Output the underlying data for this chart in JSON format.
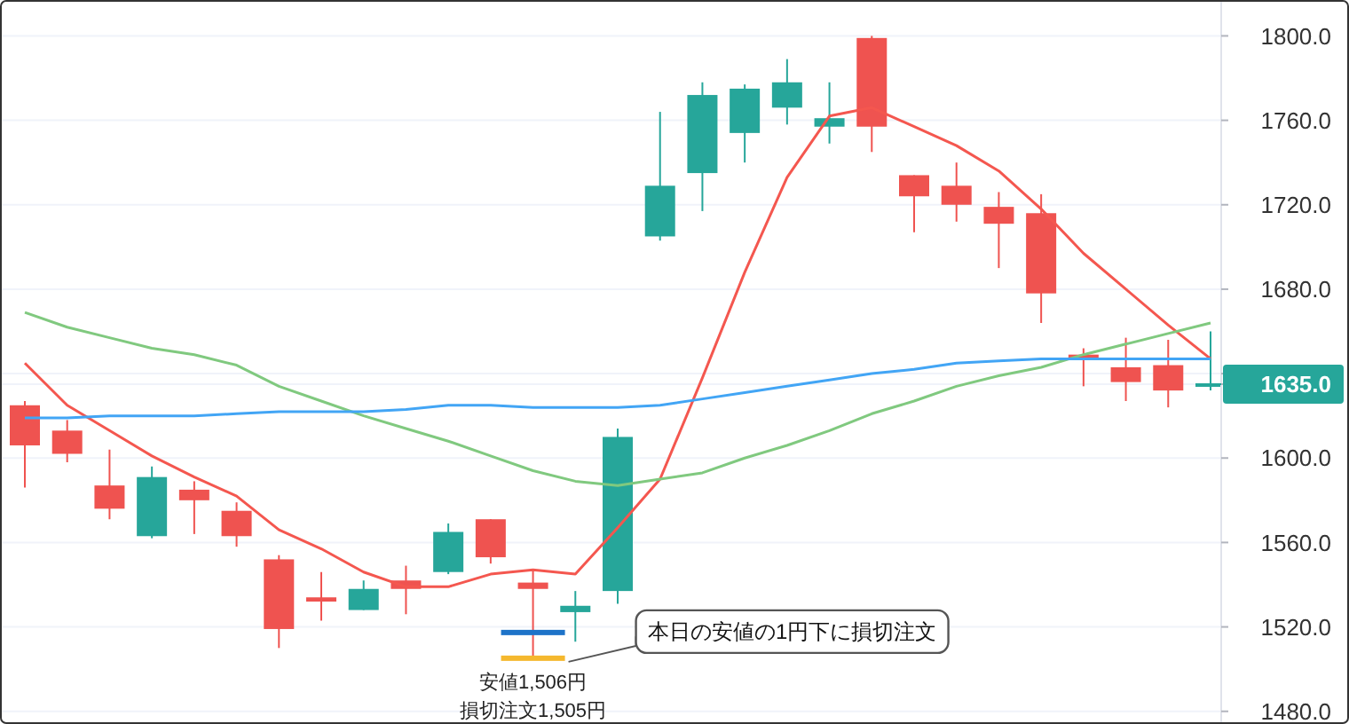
{
  "chart_data": {
    "type": "candlestick",
    "categories": [
      null,
      null,
      null,
      null,
      null,
      null,
      null,
      null,
      null,
      null,
      null,
      null,
      null,
      null,
      null,
      null,
      null,
      null,
      null,
      null,
      null,
      null,
      null,
      null,
      null,
      null,
      null,
      null,
      null
    ],
    "ohlc": [
      [
        1625,
        1627,
        1586,
        1606
      ],
      [
        1613,
        1618,
        1598,
        1602
      ],
      [
        1587,
        1604,
        1571,
        1576
      ],
      [
        1563,
        1596,
        1562,
        1591
      ],
      [
        1585,
        1589,
        1564,
        1580
      ],
      [
        1575,
        1579,
        1558,
        1563
      ],
      [
        1552,
        1554,
        1510,
        1519
      ],
      [
        1534,
        1546,
        1523,
        1532
      ],
      [
        1528,
        1542,
        1528,
        1538
      ],
      [
        1542,
        1549,
        1526,
        1538
      ],
      [
        1546,
        1569,
        1545,
        1565
      ],
      [
        1571,
        1571,
        1550,
        1553
      ],
      [
        1541,
        1547,
        1506,
        1538
      ],
      [
        1527,
        1537,
        1513,
        1530
      ],
      [
        1537,
        1614,
        1531,
        1610
      ],
      [
        1705,
        1764,
        1703,
        1729
      ],
      [
        1735,
        1778,
        1717,
        1772
      ],
      [
        1754,
        1777,
        1740,
        1775
      ],
      [
        1766,
        1789,
        1758,
        1778
      ],
      [
        1757,
        1778,
        1749,
        1761
      ],
      [
        1799,
        1800,
        1745,
        1757
      ],
      [
        1734,
        1734,
        1707,
        1724
      ],
      [
        1729,
        1740,
        1712,
        1720
      ],
      [
        1719,
        1726,
        1690,
        1711
      ],
      [
        1716,
        1725,
        1664,
        1678
      ],
      [
        1649,
        1652,
        1634,
        1647
      ],
      [
        1643,
        1657,
        1627,
        1636
      ],
      [
        1644,
        1656,
        1624,
        1632
      ],
      [
        1635,
        1660,
        1632,
        1635
      ]
    ],
    "colors": [
      "#ef5350",
      "#ef5350",
      "#ef5350",
      "#26a69a",
      "#ef5350",
      "#ef5350",
      "#ef5350",
      "#ef5350",
      "#26a69a",
      "#ef5350",
      "#26a69a",
      "#ef5350",
      "#ef5350",
      "#26a69a",
      "#26a69a",
      "#26a69a",
      "#26a69a",
      "#26a69a",
      "#26a69a",
      "#26a69a",
      "#ef5350",
      "#ef5350",
      "#ef5350",
      "#ef5350",
      "#ef5350",
      "#ef5350",
      "#ef5350",
      "#ef5350",
      "#26a69a"
    ],
    "series": [
      {
        "type": "line",
        "color": "#f4574f",
        "values": [
          1645,
          1625,
          1613,
          1601,
          1591,
          1582,
          1566,
          1557,
          1546,
          1539,
          1539,
          1545,
          1547,
          1545,
          1567,
          1590,
          1638,
          1688,
          1733,
          1762,
          1766,
          1757,
          1748,
          1736,
          1718,
          1697,
          1680,
          1663,
          1647
        ]
      },
      {
        "type": "line",
        "color": "#80c97f",
        "values": [
          1669,
          1662,
          1657,
          1652,
          1649,
          1644,
          1634,
          1627,
          1620,
          1614,
          1608,
          1601,
          1594,
          1589,
          1587,
          1590,
          1593,
          1600,
          1606,
          1613,
          1621,
          1627,
          1634,
          1639,
          1643,
          1649,
          1654,
          1659,
          1664
        ]
      },
      {
        "type": "line",
        "color": "#42a5f5",
        "values": [
          1619,
          1619,
          1620,
          1620,
          1620,
          1621,
          1622,
          1622,
          1622,
          1623,
          1625,
          1625,
          1624,
          1624,
          1624,
          1625,
          1628,
          1631,
          1634,
          1637,
          1640,
          1642,
          1645,
          1646,
          1647,
          1647,
          1647,
          1647,
          1647
        ]
      }
    ],
    "ylim": [
      1474,
      1817
    ],
    "yticks": [
      {
        "value": 1480,
        "label": "1480.0"
      },
      {
        "value": 1520,
        "label": "1520.0"
      },
      {
        "value": 1560,
        "label": "1560.0"
      },
      {
        "value": 1600,
        "label": "1600.0"
      },
      {
        "value": 1635,
        "label": "1635.0"
      },
      {
        "value": 1640,
        "label": null
      },
      {
        "value": 1680,
        "label": "1680.0"
      },
      {
        "value": 1720,
        "label": "1720.0"
      },
      {
        "value": 1760,
        "label": "1760.0"
      },
      {
        "value": 1800,
        "label": "1800.0"
      }
    ],
    "annotations": [
      "安値1,506円",
      "損切注文1,505円",
      "本日の安値の1円下に損切注文"
    ],
    "grid": "y",
    "tick_labels": "y"
  }
}
